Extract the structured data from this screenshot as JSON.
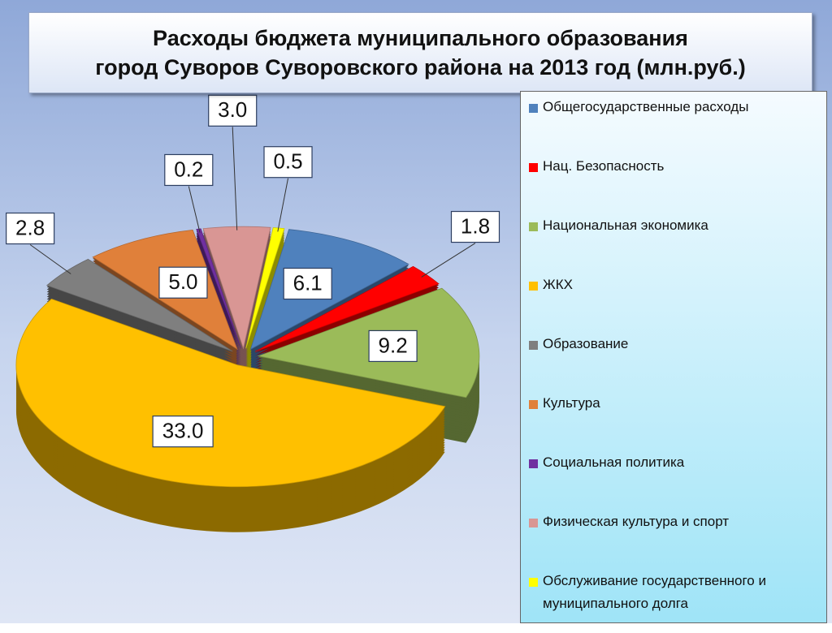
{
  "chart_data": {
    "type": "pie",
    "title": [
      "Расходы бюджета муниципального образования",
      "город Суворов Суворовского района на 2013 год (млн.руб.)"
    ],
    "categories": [
      "Общегосударственные расходы",
      "Нац. Безопасность",
      "Национальная экономика",
      "ЖКХ",
      "Образование",
      "Культура",
      "Социальная политика",
      "Физическая культура и спорт",
      "Обслуживание государственного и муниципального долга"
    ],
    "values": [
      6.1,
      1.8,
      9.2,
      33.0,
      2.8,
      5.0,
      0.2,
      3.0,
      0.5
    ],
    "value_labels": [
      "6.1",
      "1.8",
      "9.2",
      "33.0",
      "2.8",
      "5.0",
      "0.2",
      "3.0",
      "0.5"
    ],
    "colors": [
      "#4f81bd",
      "#ff0000",
      "#9bbb59",
      "#ffc000",
      "#7f7f7f",
      "#e0803a",
      "#7030a0",
      "#d99694",
      "#ffff00"
    ],
    "legend": "right"
  }
}
